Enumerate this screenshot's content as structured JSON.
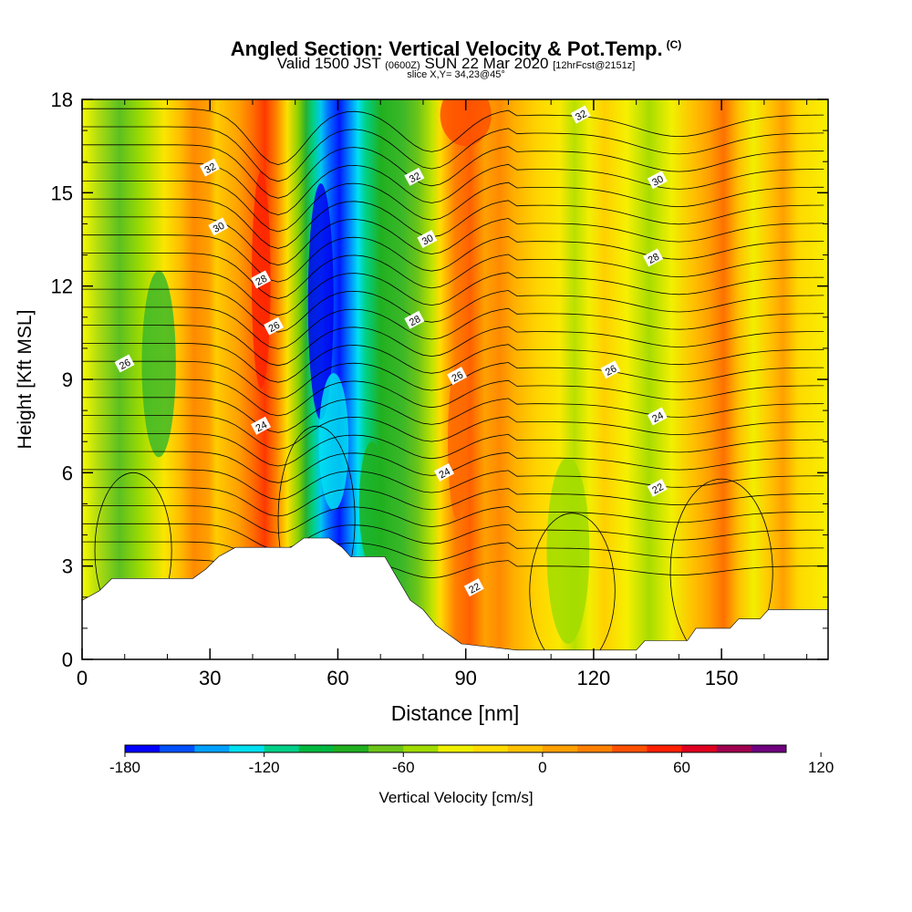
{
  "header": {
    "title": "Angled Section: Vertical Velocity & Pot.Temp.",
    "title_tag": "(C)",
    "valid_prefix": "Valid 1500 JST",
    "valid_utc": "(0600Z)",
    "valid_date": "SUN 22 Mar 2020",
    "forecast": "[12hrFcst@2151z]",
    "slice": "slice X,Y= 34,23@45°"
  },
  "chart_data": {
    "type": "heatmap",
    "xlabel": "Distance [nm]",
    "ylabel": "Height [Kft MSL]",
    "xlim": [
      0,
      175
    ],
    "ylim": [
      0,
      18
    ],
    "x_ticks": [
      "0",
      "30",
      "60",
      "90",
      "120",
      "150"
    ],
    "y_ticks": [
      "0",
      "3",
      "6",
      "9",
      "12",
      "15",
      "18"
    ],
    "colorbar": {
      "label": "Vertical Velocity [cm/s]",
      "levels": [
        -180,
        -165,
        -150,
        -135,
        -120,
        -105,
        -90,
        -75,
        -60,
        -45,
        -30,
        -15,
        0,
        15,
        30,
        45,
        60,
        75,
        90,
        105,
        120,
        135,
        150
      ],
      "tick_labels": [
        "-180",
        "-120",
        "-60",
        "0",
        "60",
        "120"
      ],
      "colors": [
        "#0000ff",
        "#0050ff",
        "#00a0ff",
        "#00e0f0",
        "#00d088",
        "#00b840",
        "#20b020",
        "#6cc418",
        "#a0dc00",
        "#f0f000",
        "#ffdc00",
        "#ffc000",
        "#ffa000",
        "#ff8000",
        "#ff5000",
        "#ff2000",
        "#e00020",
        "#a00050",
        "#700080"
      ]
    },
    "contour_field": "Potential Temperature [C]",
    "contour_labels": [
      {
        "text": "32",
        "x": 30,
        "y": 15.8
      },
      {
        "text": "30",
        "x": 32,
        "y": 13.9
      },
      {
        "text": "28",
        "x": 42,
        "y": 12.2
      },
      {
        "text": "26",
        "x": 45,
        "y": 10.7
      },
      {
        "text": "24",
        "x": 42,
        "y": 7.5
      },
      {
        "text": "26",
        "x": 10,
        "y": 9.5
      },
      {
        "text": "32",
        "x": 78,
        "y": 15.5
      },
      {
        "text": "30",
        "x": 81,
        "y": 13.5
      },
      {
        "text": "28",
        "x": 78,
        "y": 10.9
      },
      {
        "text": "26",
        "x": 88,
        "y": 9.1
      },
      {
        "text": "24",
        "x": 85,
        "y": 6.0
      },
      {
        "text": "22",
        "x": 92,
        "y": 2.3
      },
      {
        "text": "32",
        "x": 117,
        "y": 17.5
      },
      {
        "text": "30",
        "x": 135,
        "y": 15.4
      },
      {
        "text": "28",
        "x": 134,
        "y": 12.9
      },
      {
        "text": "26",
        "x": 124,
        "y": 9.3
      },
      {
        "text": "24",
        "x": 135,
        "y": 7.8
      },
      {
        "text": "22",
        "x": 135,
        "y": 5.5
      }
    ],
    "terrain_kft": [
      [
        0,
        1.9
      ],
      [
        4,
        2.2
      ],
      [
        7,
        2.6
      ],
      [
        26,
        2.6
      ],
      [
        29,
        2.9
      ],
      [
        32,
        3.3
      ],
      [
        36,
        3.6
      ],
      [
        49,
        3.6
      ],
      [
        52,
        3.9
      ],
      [
        58,
        3.9
      ],
      [
        61,
        3.6
      ],
      [
        63,
        3.3
      ],
      [
        71,
        3.3
      ],
      [
        74,
        2.6
      ],
      [
        77,
        1.9
      ],
      [
        80,
        1.6
      ],
      [
        83,
        1.1
      ],
      [
        86,
        0.8
      ],
      [
        89,
        0.5
      ],
      [
        102,
        0.3
      ],
      [
        130,
        0.3
      ],
      [
        132,
        0.6
      ],
      [
        142,
        0.6
      ],
      [
        144,
        1.0
      ],
      [
        152,
        1.0
      ],
      [
        154,
        1.3
      ],
      [
        159,
        1.3
      ],
      [
        161,
        1.6
      ],
      [
        175,
        1.6
      ]
    ]
  }
}
